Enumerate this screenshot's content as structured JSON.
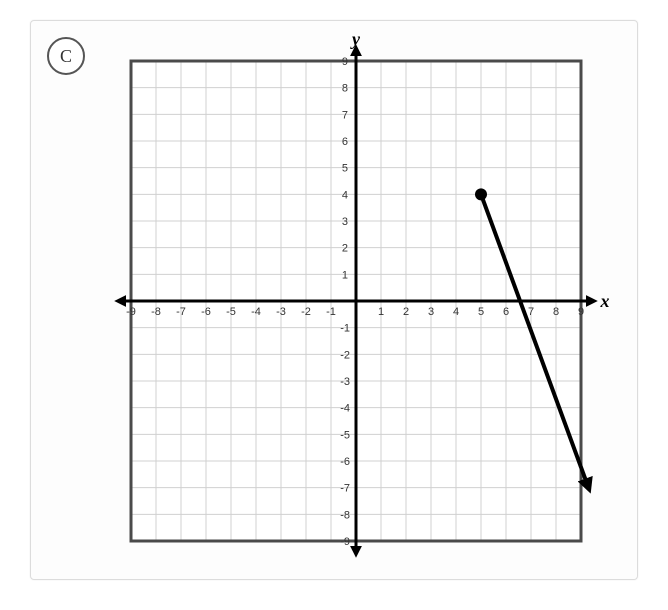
{
  "option_label": "C",
  "chart": {
    "type": "line",
    "x_axis_label": "x",
    "y_axis_label": "y",
    "xlim": [
      -9,
      9
    ],
    "ylim": [
      -9,
      9
    ],
    "tick_step": 1,
    "x_ticks_neg": [
      "-9",
      "-8",
      "-7",
      "-6",
      "-5",
      "-4",
      "-3",
      "-2",
      "-1"
    ],
    "x_ticks_pos": [
      "1",
      "2",
      "3",
      "4",
      "5",
      "6",
      "7",
      "8",
      "9"
    ],
    "y_ticks_neg": [
      "-1",
      "-2",
      "-3",
      "-4",
      "-5",
      "-6",
      "-7",
      "-8",
      "-9"
    ],
    "y_ticks_pos": [
      "1",
      "2",
      "3",
      "4",
      "5",
      "6",
      "7",
      "8",
      "9"
    ],
    "background_color": "#ffffff",
    "border_color": "#4a4a4a",
    "grid_color": "#d0d0d0",
    "axis_color": "#000000",
    "tick_font_size": 11,
    "axis_label_font_size": 18,
    "axis_label_font_weight": "bold",
    "axis_label_font_style": "italic",
    "line_segment": {
      "start": {
        "x": 5,
        "y": 4,
        "endpoint": "closed"
      },
      "end": {
        "x": 9.3,
        "y": -7,
        "endpoint": "arrow"
      },
      "stroke": "#000000",
      "stroke_width": 4,
      "dot_radius": 6,
      "arrow_size": 14
    }
  }
}
